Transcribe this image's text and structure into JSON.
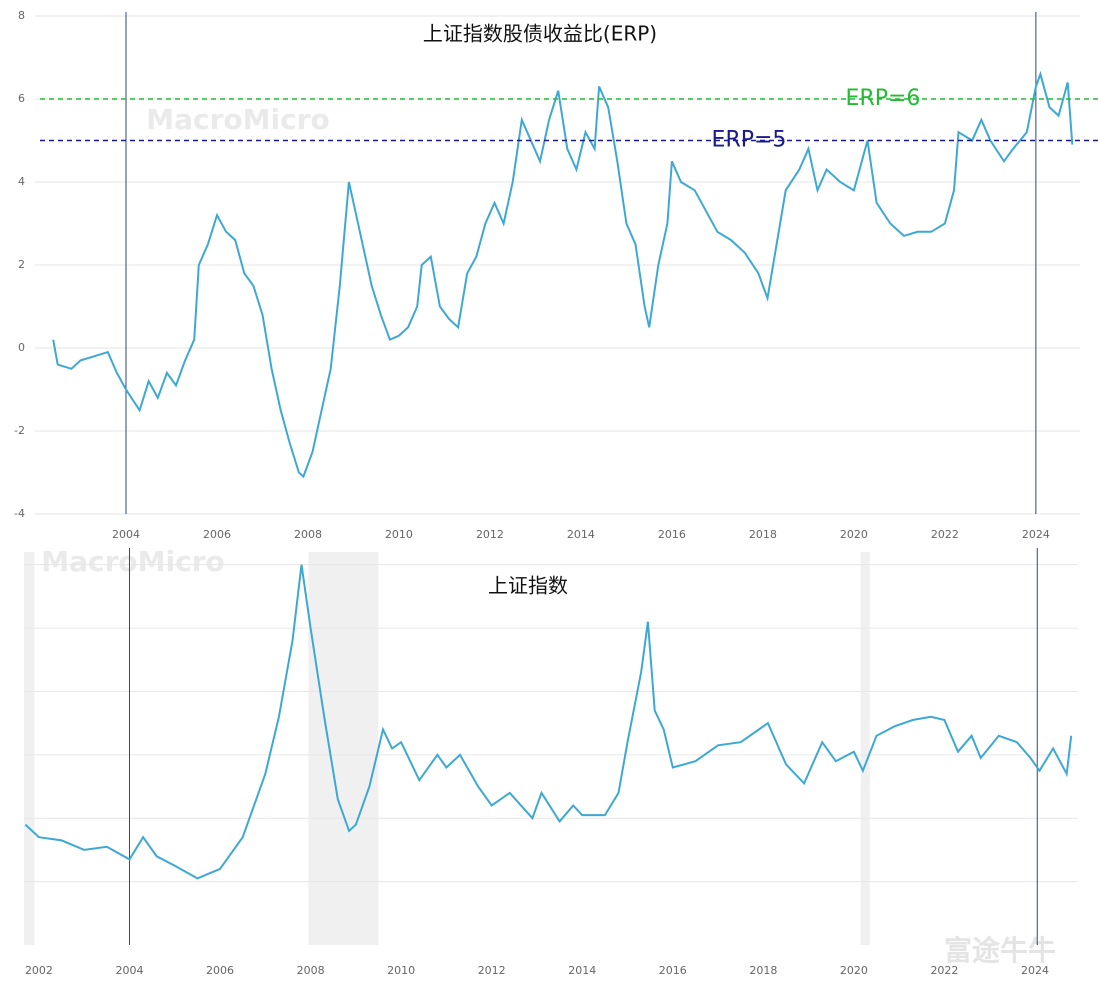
{
  "chart_data": [
    {
      "type": "line",
      "title": "上证指数股债收益比(ERP)",
      "watermark": "MacroMicro",
      "color": "#3ea8d4",
      "xlim": [
        2002,
        2024.97
      ],
      "xticks": [
        2004,
        2006,
        2008,
        2010,
        2012,
        2014,
        2016,
        2018,
        2020,
        2022,
        2024
      ],
      "ylim": [
        -4,
        8
      ],
      "yticks": [
        -4,
        -2,
        0,
        2,
        4,
        6,
        8
      ],
      "grid": true,
      "vlines": [
        2004,
        2024
      ],
      "reference_lines": [
        {
          "value": 6,
          "label": "ERP=6",
          "color": "#22bb33"
        },
        {
          "value": 5,
          "label": "ERP=5",
          "color": "#1a1a8c"
        }
      ],
      "x": [
        2002.4,
        2002.5,
        2002.8,
        2003.0,
        2003.3,
        2003.6,
        2003.8,
        2004.0,
        2004.3,
        2004.5,
        2004.7,
        2004.9,
        2005.1,
        2005.3,
        2005.5,
        2005.6,
        2005.8,
        2006.0,
        2006.2,
        2006.4,
        2006.6,
        2006.8,
        2007.0,
        2007.2,
        2007.4,
        2007.6,
        2007.8,
        2007.9,
        2008.1,
        2008.3,
        2008.5,
        2008.7,
        2008.9,
        2009.0,
        2009.2,
        2009.4,
        2009.6,
        2009.8,
        2010.0,
        2010.2,
        2010.4,
        2010.5,
        2010.7,
        2010.9,
        2011.1,
        2011.3,
        2011.5,
        2011.7,
        2011.9,
        2012.1,
        2012.3,
        2012.5,
        2012.7,
        2012.9,
        2013.1,
        2013.3,
        2013.5,
        2013.7,
        2013.9,
        2014.1,
        2014.3,
        2014.4,
        2014.6,
        2014.8,
        2015.0,
        2015.2,
        2015.4,
        2015.5,
        2015.7,
        2015.9,
        2016.0,
        2016.2,
        2016.5,
        2016.8,
        2017.0,
        2017.3,
        2017.6,
        2017.9,
        2018.0,
        2018.1,
        2018.3,
        2018.5,
        2018.8,
        2019.0,
        2019.2,
        2019.4,
        2019.7,
        2020.0,
        2020.3,
        2020.5,
        2020.8,
        2021.1,
        2021.4,
        2021.7,
        2022.0,
        2022.2,
        2022.3,
        2022.6,
        2022.8,
        2023.0,
        2023.3,
        2023.5,
        2023.8,
        2024.0,
        2024.1,
        2024.3,
        2024.5,
        2024.7,
        2024.8
      ],
      "values": [
        0.2,
        -0.4,
        -0.5,
        -0.3,
        -0.2,
        -0.1,
        -0.6,
        -1.0,
        -1.5,
        -0.8,
        -1.2,
        -0.6,
        -0.9,
        -0.3,
        0.2,
        2.0,
        2.5,
        3.2,
        2.8,
        2.6,
        1.8,
        1.5,
        0.8,
        -0.5,
        -1.5,
        -2.3,
        -3.0,
        -3.1,
        -2.5,
        -1.5,
        -0.5,
        1.5,
        4.0,
        3.5,
        2.5,
        1.5,
        0.8,
        0.2,
        0.3,
        0.5,
        1.0,
        2.0,
        2.2,
        1.0,
        0.7,
        0.5,
        1.8,
        2.2,
        3.0,
        3.5,
        3.0,
        4.0,
        5.5,
        5.0,
        4.5,
        5.5,
        6.2,
        4.8,
        4.3,
        5.2,
        4.8,
        6.3,
        5.8,
        4.5,
        3.0,
        2.5,
        1.0,
        0.5,
        2.0,
        3.0,
        4.5,
        4.0,
        3.8,
        3.2,
        2.8,
        2.6,
        2.3,
        1.8,
        1.5,
        1.2,
        2.5,
        3.8,
        4.3,
        4.8,
        3.8,
        4.3,
        4.0,
        3.8,
        5.0,
        3.5,
        3.0,
        2.7,
        2.8,
        2.8,
        3.0,
        3.8,
        5.2,
        5.0,
        5.5,
        5.0,
        4.5,
        4.8,
        5.2,
        6.3,
        6.6,
        5.8,
        5.6,
        6.4,
        4.9
      ]
    },
    {
      "type": "line",
      "title": "上证指数",
      "watermark": "MacroMicro",
      "color": "#3ea8d4",
      "xlim": [
        2001.67,
        2024.95
      ],
      "xticks": [
        2002,
        2004,
        2006,
        2008,
        2010,
        2012,
        2014,
        2016,
        2018,
        2020,
        2022,
        2024
      ],
      "ylim": [
        0,
        6200
      ],
      "ygrid": [
        1000,
        2000,
        3000,
        4000,
        5000,
        6000
      ],
      "vlines": [
        2004,
        2024.05
      ],
      "shaded_periods": [
        [
          2001.67,
          2001.9
        ],
        [
          2007.95,
          2009.5
        ],
        [
          2020.15,
          2020.35
        ]
      ],
      "x": [
        2001.7,
        2002.0,
        2002.5,
        2003.0,
        2003.5,
        2004.0,
        2004.3,
        2004.6,
        2005.0,
        2005.5,
        2006.0,
        2006.5,
        2007.0,
        2007.3,
        2007.6,
        2007.8,
        2008.0,
        2008.3,
        2008.6,
        2008.85,
        2009.0,
        2009.3,
        2009.6,
        2009.8,
        2010.0,
        2010.4,
        2010.8,
        2011.0,
        2011.3,
        2011.7,
        2012.0,
        2012.4,
        2012.9,
        2013.1,
        2013.5,
        2013.8,
        2014.0,
        2014.5,
        2014.8,
        2015.0,
        2015.3,
        2015.45,
        2015.6,
        2015.8,
        2016.0,
        2016.5,
        2017.0,
        2017.5,
        2017.9,
        2018.1,
        2018.5,
        2018.9,
        2019.3,
        2019.6,
        2020.0,
        2020.2,
        2020.5,
        2020.9,
        2021.3,
        2021.7,
        2022.0,
        2022.3,
        2022.6,
        2022.8,
        2023.2,
        2023.6,
        2023.9,
        2024.1,
        2024.4,
        2024.7,
        2024.8
      ],
      "values": [
        1900,
        1700,
        1650,
        1500,
        1550,
        1350,
        1700,
        1400,
        1250,
        1050,
        1200,
        1700,
        2700,
        3600,
        4800,
        6000,
        5000,
        3600,
        2300,
        1800,
        1900,
        2500,
        3400,
        3100,
        3200,
        2600,
        3000,
        2800,
        3000,
        2500,
        2200,
        2400,
        2000,
        2400,
        1950,
        2200,
        2050,
        2050,
        2400,
        3200,
        4300,
        5100,
        3700,
        3400,
        2800,
        2900,
        3150,
        3200,
        3400,
        3500,
        2850,
        2550,
        3200,
        2900,
        3050,
        2750,
        3300,
        3450,
        3550,
        3600,
        3550,
        3050,
        3300,
        2950,
        3300,
        3200,
        2950,
        2750,
        3100,
        2700,
        3300
      ]
    }
  ],
  "footer_watermark": "富途牛牛"
}
